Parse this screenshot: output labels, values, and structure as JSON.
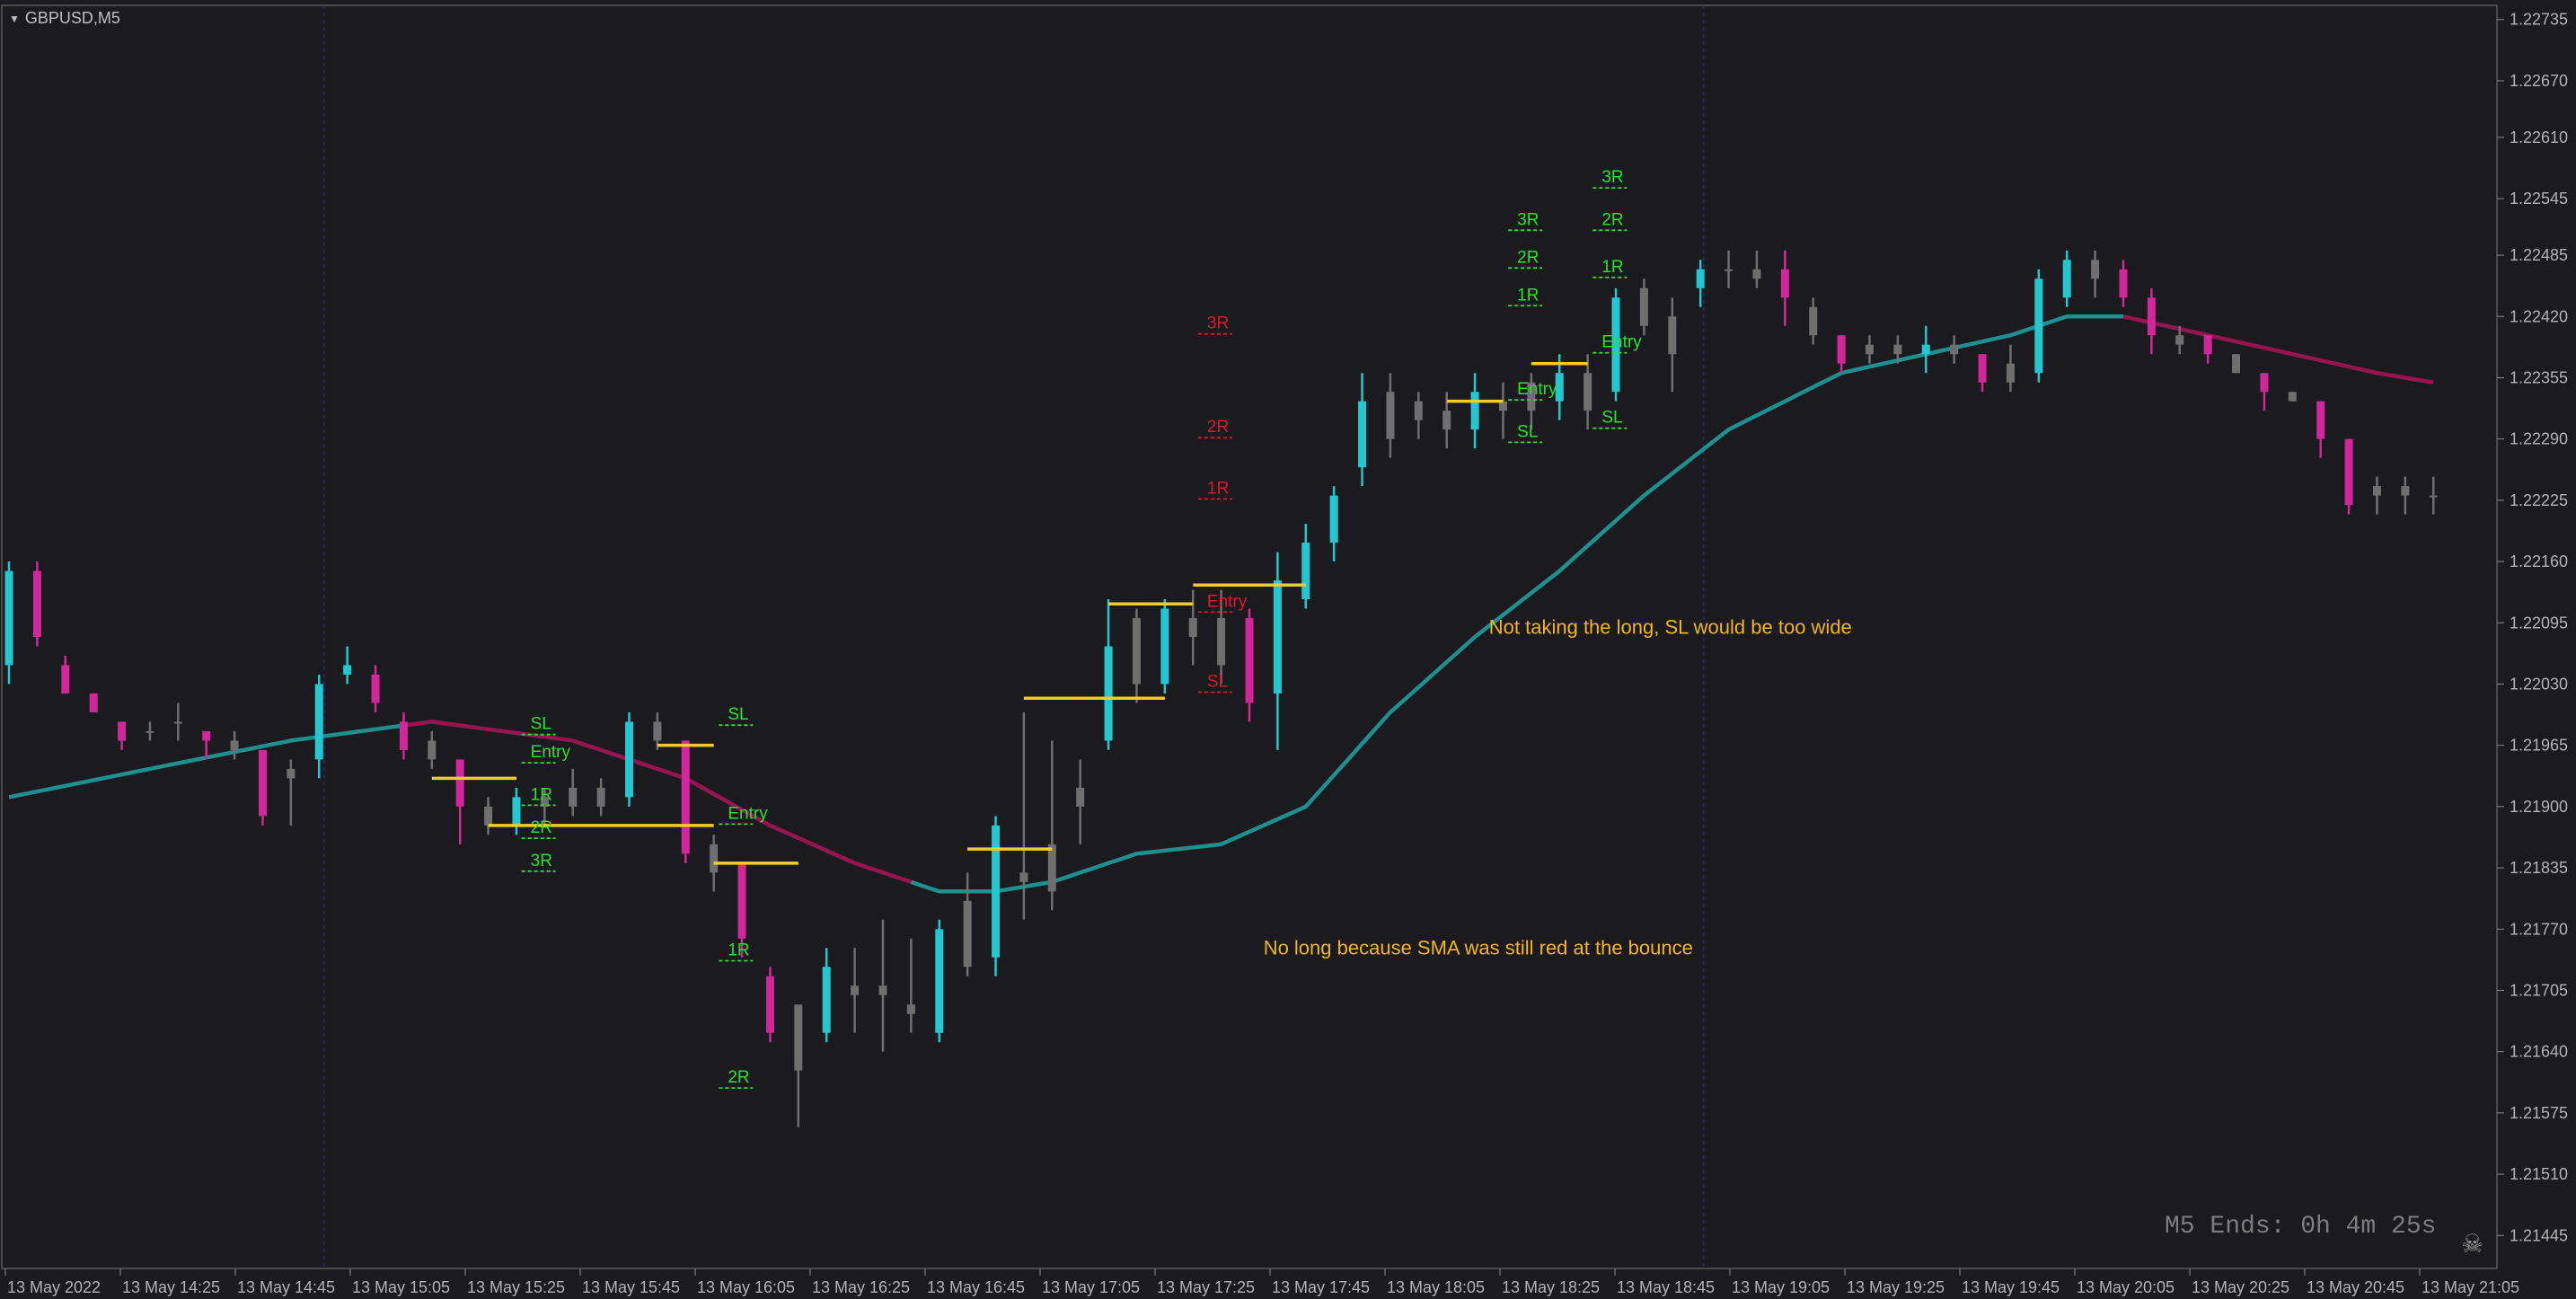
{
  "symbol": "GBPUSD,M5",
  "timer": "M5 Ends: 0h 4m 25s",
  "colors": {
    "background": "#1b1b1f",
    "bull": "#22c7cf",
    "bear": "#d1279a",
    "neutral": "#6f6f6f",
    "sma_up": "#1f8f8f",
    "sma_down": "#97154f",
    "level_yellow": "#f2cd2a",
    "label_green": "#29e12f",
    "label_red": "#e0162a",
    "annotation": "#f0b429",
    "axis_text": "#b3b3b3",
    "separator": "#2a2a7a"
  },
  "chart_data": {
    "type": "candlestick",
    "title": "",
    "xlabel": "",
    "ylabel": "",
    "ylim": [
      1.2141,
      1.2275
    ],
    "grid": false,
    "y_ticks": [
      "1.22735",
      "1.22670",
      "1.22610",
      "1.22545",
      "1.22485",
      "1.22420",
      "1.22355",
      "1.22290",
      "1.22225",
      "1.22160",
      "1.22095",
      "1.22030",
      "1.21965",
      "1.21900",
      "1.21835",
      "1.21770",
      "1.21705",
      "1.21640",
      "1.21575",
      "1.21510",
      "1.21445"
    ],
    "x_ticks": [
      "13 May 2022",
      "13 May 14:25",
      "13 May 14:45",
      "13 May 15:05",
      "13 May 15:25",
      "13 May 15:45",
      "13 May 16:05",
      "13 May 16:25",
      "13 May 16:45",
      "13 May 17:05",
      "13 May 17:25",
      "13 May 17:45",
      "13 May 18:05",
      "13 May 18:25",
      "13 May 18:45",
      "13 May 19:05",
      "13 May 19:25",
      "13 May 19:45",
      "13 May 20:05",
      "13 May 20:25",
      "13 May 20:45",
      "13 May 21:05"
    ],
    "period_separators": [
      "13 May 14:45",
      "13 May 18:45"
    ],
    "candles": [
      {
        "x": 0,
        "o": 1.2205,
        "h": 1.2216,
        "l": 1.2203,
        "c": 1.2215,
        "k": "bull"
      },
      {
        "x": 2,
        "o": 1.2215,
        "h": 1.2216,
        "l": 1.2207,
        "c": 1.2208,
        "k": "bear"
      },
      {
        "x": 4,
        "o": 1.2205,
        "h": 1.2206,
        "l": 1.2202,
        "c": 1.2202,
        "k": "bear"
      },
      {
        "x": 6,
        "o": 1.2202,
        "h": 1.2202,
        "l": 1.22,
        "c": 1.22,
        "k": "bear"
      },
      {
        "x": 8,
        "o": 1.2199,
        "h": 1.2199,
        "l": 1.2196,
        "c": 1.2197,
        "k": "bear"
      },
      {
        "x": 10,
        "o": 1.2198,
        "h": 1.2199,
        "l": 1.2197,
        "c": 1.2198,
        "k": "neutral"
      },
      {
        "x": 12,
        "o": 1.2199,
        "h": 1.2201,
        "l": 1.2197,
        "c": 1.2199,
        "k": "neutral"
      },
      {
        "x": 14,
        "o": 1.2198,
        "h": 1.2198,
        "l": 1.2195,
        "c": 1.2197,
        "k": "bear"
      },
      {
        "x": 16,
        "o": 1.2197,
        "h": 1.2198,
        "l": 1.2195,
        "c": 1.2196,
        "k": "neutral"
      },
      {
        "x": 18,
        "o": 1.2196,
        "h": 1.2196,
        "l": 1.2188,
        "c": 1.2189,
        "k": "bear"
      },
      {
        "x": 20,
        "o": 1.2193,
        "h": 1.2195,
        "l": 1.2188,
        "c": 1.2194,
        "k": "neutral"
      },
      {
        "x": 22,
        "o": 1.2195,
        "h": 1.2204,
        "l": 1.2193,
        "c": 1.2203,
        "k": "bull"
      },
      {
        "x": 24,
        "o": 1.2204,
        "h": 1.2207,
        "l": 1.2203,
        "c": 1.2205,
        "k": "bull"
      },
      {
        "x": 26,
        "o": 1.2204,
        "h": 1.2205,
        "l": 1.22,
        "c": 1.2201,
        "k": "bear"
      },
      {
        "x": 28,
        "o": 1.2199,
        "h": 1.22,
        "l": 1.2195,
        "c": 1.2196,
        "k": "bear"
      },
      {
        "x": 30,
        "o": 1.2197,
        "h": 1.2198,
        "l": 1.2194,
        "c": 1.2195,
        "k": "neutral"
      },
      {
        "x": 32,
        "o": 1.2195,
        "h": 1.2195,
        "l": 1.2186,
        "c": 1.219,
        "k": "bear"
      },
      {
        "x": 34,
        "o": 1.219,
        "h": 1.2191,
        "l": 1.2187,
        "c": 1.2188,
        "k": "neutral"
      },
      {
        "x": 36,
        "o": 1.2188,
        "h": 1.2192,
        "l": 1.2187,
        "c": 1.2191,
        "k": "bull"
      },
      {
        "x": 38,
        "o": 1.2191,
        "h": 1.2192,
        "l": 1.2188,
        "c": 1.219,
        "k": "neutral"
      },
      {
        "x": 40,
        "o": 1.219,
        "h": 1.2194,
        "l": 1.2189,
        "c": 1.2192,
        "k": "neutral"
      },
      {
        "x": 42,
        "o": 1.2192,
        "h": 1.2193,
        "l": 1.2189,
        "c": 1.219,
        "k": "neutral"
      },
      {
        "x": 44,
        "o": 1.2191,
        "h": 1.22,
        "l": 1.219,
        "c": 1.2199,
        "k": "bull"
      },
      {
        "x": 46,
        "o": 1.2199,
        "h": 1.22,
        "l": 1.2196,
        "c": 1.2197,
        "k": "neutral"
      },
      {
        "x": 48,
        "o": 1.2197,
        "h": 1.2197,
        "l": 1.2184,
        "c": 1.2185,
        "k": "bear"
      },
      {
        "x": 50,
        "o": 1.2186,
        "h": 1.2187,
        "l": 1.2181,
        "c": 1.2183,
        "k": "neutral"
      },
      {
        "x": 52,
        "o": 1.2184,
        "h": 1.2184,
        "l": 1.2174,
        "c": 1.2176,
        "k": "bear"
      },
      {
        "x": 54,
        "o": 1.2172,
        "h": 1.2173,
        "l": 1.2165,
        "c": 1.2166,
        "k": "bear"
      },
      {
        "x": 56,
        "o": 1.2169,
        "h": 1.2169,
        "l": 1.2156,
        "c": 1.2162,
        "k": "neutral"
      },
      {
        "x": 58,
        "o": 1.2166,
        "h": 1.2175,
        "l": 1.2165,
        "c": 1.2173,
        "k": "bull"
      },
      {
        "x": 60,
        "o": 1.217,
        "h": 1.2175,
        "l": 1.2166,
        "c": 1.2171,
        "k": "neutral"
      },
      {
        "x": 62,
        "o": 1.217,
        "h": 1.2178,
        "l": 1.2164,
        "c": 1.2171,
        "k": "neutral"
      },
      {
        "x": 64,
        "o": 1.2168,
        "h": 1.2176,
        "l": 1.2166,
        "c": 1.2169,
        "k": "neutral"
      },
      {
        "x": 66,
        "o": 1.2166,
        "h": 1.2178,
        "l": 1.2165,
        "c": 1.2177,
        "k": "bull"
      },
      {
        "x": 68,
        "o": 1.2173,
        "h": 1.2183,
        "l": 1.2172,
        "c": 1.218,
        "k": "neutral"
      },
      {
        "x": 70,
        "o": 1.2174,
        "h": 1.2189,
        "l": 1.2172,
        "c": 1.2188,
        "k": "bull"
      },
      {
        "x": 72,
        "o": 1.2182,
        "h": 1.22,
        "l": 1.2178,
        "c": 1.2183,
        "k": "neutral"
      },
      {
        "x": 74,
        "o": 1.2181,
        "h": 1.2197,
        "l": 1.2179,
        "c": 1.2186,
        "k": "neutral"
      },
      {
        "x": 76,
        "o": 1.219,
        "h": 1.2195,
        "l": 1.2186,
        "c": 1.2192,
        "k": "neutral"
      },
      {
        "x": 78,
        "o": 1.2197,
        "h": 1.2212,
        "l": 1.2196,
        "c": 1.2207,
        "k": "bull"
      },
      {
        "x": 80,
        "o": 1.2203,
        "h": 1.2211,
        "l": 1.2201,
        "c": 1.221,
        "k": "neutral"
      },
      {
        "x": 82,
        "o": 1.2203,
        "h": 1.2212,
        "l": 1.2202,
        "c": 1.2211,
        "k": "bull"
      },
      {
        "x": 84,
        "o": 1.2208,
        "h": 1.2213,
        "l": 1.2205,
        "c": 1.221,
        "k": "neutral"
      },
      {
        "x": 86,
        "o": 1.221,
        "h": 1.2213,
        "l": 1.2203,
        "c": 1.2205,
        "k": "neutral"
      },
      {
        "x": 88,
        "o": 1.221,
        "h": 1.2211,
        "l": 1.2199,
        "c": 1.2201,
        "k": "bear"
      },
      {
        "x": 90,
        "o": 1.2202,
        "h": 1.2217,
        "l": 1.2196,
        "c": 1.2214,
        "k": "bull"
      },
      {
        "x": 92,
        "o": 1.2212,
        "h": 1.222,
        "l": 1.2211,
        "c": 1.2218,
        "k": "bull"
      },
      {
        "x": 94,
        "o": 1.2218,
        "h": 1.2224,
        "l": 1.2216,
        "c": 1.2223,
        "k": "bull"
      },
      {
        "x": 96,
        "o": 1.2226,
        "h": 1.2236,
        "l": 1.2224,
        "c": 1.2233,
        "k": "bull"
      },
      {
        "x": 98,
        "o": 1.2229,
        "h": 1.2236,
        "l": 1.2227,
        "c": 1.2234,
        "k": "neutral"
      },
      {
        "x": 100,
        "o": 1.2231,
        "h": 1.2234,
        "l": 1.2229,
        "c": 1.2233,
        "k": "neutral"
      },
      {
        "x": 102,
        "o": 1.223,
        "h": 1.2234,
        "l": 1.2228,
        "c": 1.2232,
        "k": "neutral"
      },
      {
        "x": 104,
        "o": 1.223,
        "h": 1.2236,
        "l": 1.2228,
        "c": 1.2234,
        "k": "bull"
      },
      {
        "x": 106,
        "o": 1.2232,
        "h": 1.2235,
        "l": 1.2229,
        "c": 1.2233,
        "k": "neutral"
      },
      {
        "x": 108,
        "o": 1.2232,
        "h": 1.2236,
        "l": 1.223,
        "c": 1.2235,
        "k": "neutral"
      },
      {
        "x": 110,
        "o": 1.2233,
        "h": 1.2238,
        "l": 1.2231,
        "c": 1.2236,
        "k": "bull"
      },
      {
        "x": 112,
        "o": 1.2232,
        "h": 1.2238,
        "l": 1.223,
        "c": 1.2236,
        "k": "neutral"
      },
      {
        "x": 114,
        "o": 1.2234,
        "h": 1.2245,
        "l": 1.2233,
        "c": 1.2244,
        "k": "bull"
      },
      {
        "x": 116,
        "o": 1.2241,
        "h": 1.2246,
        "l": 1.224,
        "c": 1.2245,
        "k": "neutral"
      },
      {
        "x": 118,
        "o": 1.2238,
        "h": 1.2244,
        "l": 1.2234,
        "c": 1.2242,
        "k": "neutral"
      },
      {
        "x": 120,
        "o": 1.2245,
        "h": 1.2248,
        "l": 1.2243,
        "c": 1.2247,
        "k": "bull"
      },
      {
        "x": 122,
        "o": 1.2247,
        "h": 1.2249,
        "l": 1.2245,
        "c": 1.2247,
        "k": "neutral"
      },
      {
        "x": 124,
        "o": 1.2246,
        "h": 1.2249,
        "l": 1.2245,
        "c": 1.2247,
        "k": "neutral"
      },
      {
        "x": 126,
        "o": 1.2247,
        "h": 1.2249,
        "l": 1.2241,
        "c": 1.2244,
        "k": "bear"
      },
      {
        "x": 128,
        "o": 1.2243,
        "h": 1.2244,
        "l": 1.2239,
        "c": 1.224,
        "k": "neutral"
      },
      {
        "x": 130,
        "o": 1.224,
        "h": 1.224,
        "l": 1.2236,
        "c": 1.2237,
        "k": "bear"
      },
      {
        "x": 132,
        "o": 1.2239,
        "h": 1.224,
        "l": 1.2237,
        "c": 1.2238,
        "k": "neutral"
      },
      {
        "x": 134,
        "o": 1.2238,
        "h": 1.224,
        "l": 1.2237,
        "c": 1.2239,
        "k": "neutral"
      },
      {
        "x": 136,
        "o": 1.2238,
        "h": 1.2241,
        "l": 1.2236,
        "c": 1.2239,
        "k": "bull"
      },
      {
        "x": 138,
        "o": 1.2238,
        "h": 1.224,
        "l": 1.2237,
        "c": 1.2239,
        "k": "neutral"
      },
      {
        "x": 140,
        "o": 1.2238,
        "h": 1.2238,
        "l": 1.2234,
        "c": 1.2235,
        "k": "bear"
      },
      {
        "x": 142,
        "o": 1.2235,
        "h": 1.2239,
        "l": 1.2234,
        "c": 1.2237,
        "k": "neutral"
      },
      {
        "x": 144,
        "o": 1.2236,
        "h": 1.2247,
        "l": 1.2235,
        "c": 1.2246,
        "k": "bull"
      },
      {
        "x": 146,
        "o": 1.2244,
        "h": 1.2249,
        "l": 1.2243,
        "c": 1.2248,
        "k": "bull"
      },
      {
        "x": 148,
        "o": 1.2246,
        "h": 1.2249,
        "l": 1.2244,
        "c": 1.2248,
        "k": "neutral"
      },
      {
        "x": 150,
        "o": 1.2247,
        "h": 1.2248,
        "l": 1.2243,
        "c": 1.2244,
        "k": "bear"
      },
      {
        "x": 152,
        "o": 1.2244,
        "h": 1.2245,
        "l": 1.2238,
        "c": 1.224,
        "k": "bear"
      },
      {
        "x": 154,
        "o": 1.224,
        "h": 1.2241,
        "l": 1.2238,
        "c": 1.2239,
        "k": "neutral"
      },
      {
        "x": 156,
        "o": 1.224,
        "h": 1.224,
        "l": 1.2237,
        "c": 1.2238,
        "k": "bear"
      },
      {
        "x": 158,
        "o": 1.2238,
        "h": 1.2238,
        "l": 1.2236,
        "c": 1.2236,
        "k": "neutral"
      },
      {
        "x": 160,
        "o": 1.2236,
        "h": 1.2236,
        "l": 1.2232,
        "c": 1.2234,
        "k": "bear"
      },
      {
        "x": 162,
        "o": 1.2234,
        "h": 1.2234,
        "l": 1.2233,
        "c": 1.2233,
        "k": "neutral"
      },
      {
        "x": 164,
        "o": 1.2233,
        "h": 1.2233,
        "l": 1.2227,
        "c": 1.2229,
        "k": "bear"
      },
      {
        "x": 166,
        "o": 1.2229,
        "h": 1.2229,
        "l": 1.2221,
        "c": 1.2222,
        "k": "bear"
      },
      {
        "x": 168,
        "o": 1.2223,
        "h": 1.2225,
        "l": 1.2221,
        "c": 1.2224,
        "k": "neutral"
      },
      {
        "x": 170,
        "o": 1.2224,
        "h": 1.2225,
        "l": 1.2221,
        "c": 1.2223,
        "k": "neutral"
      },
      {
        "x": 172,
        "o": 1.2223,
        "h": 1.2225,
        "l": 1.2221,
        "c": 1.2223,
        "k": "neutral"
      }
    ],
    "sma": {
      "name": "",
      "x": [
        0,
        10,
        20,
        30,
        40,
        48,
        54,
        60,
        66,
        70,
        74,
        80,
        86,
        92,
        98,
        104,
        110,
        116,
        122,
        130,
        136,
        142,
        146,
        150,
        156,
        162,
        168,
        172
      ],
      "y": [
        1.2191,
        1.2194,
        1.2197,
        1.2199,
        1.2197,
        1.2193,
        1.2188,
        1.2184,
        1.2181,
        1.2181,
        1.2182,
        1.2185,
        1.2186,
        1.219,
        1.22,
        1.2208,
        1.2215,
        1.2223,
        1.223,
        1.2236,
        1.2238,
        1.224,
        1.2242,
        1.2242,
        1.224,
        1.2238,
        1.2236,
        1.2235
      ],
      "segments": [
        {
          "from": 0,
          "to": 28,
          "color": "up"
        },
        {
          "from": 28,
          "to": 64,
          "color": "down"
        },
        {
          "from": 64,
          "to": 150,
          "color": "up"
        },
        {
          "from": 150,
          "to": 172,
          "color": "down"
        }
      ]
    },
    "levels": [
      {
        "x1": 30,
        "x2": 36,
        "y": 1.2193
      },
      {
        "x1": 34,
        "x2": 50,
        "y": 1.2188
      },
      {
        "x1": 46,
        "x2": 50,
        "y": 1.21965
      },
      {
        "x1": 50,
        "x2": 56,
        "y": 1.2184
      },
      {
        "x1": 68,
        "x2": 74,
        "y": 1.21855
      },
      {
        "x1": 72,
        "x2": 82,
        "y": 1.22015
      },
      {
        "x1": 78,
        "x2": 84,
        "y": 1.22115
      },
      {
        "x1": 84,
        "x2": 92,
        "y": 1.22135
      },
      {
        "x1": 102,
        "x2": 106,
        "y": 1.2233
      },
      {
        "x1": 108,
        "x2": 112,
        "y": 1.2237
      }
    ],
    "trade_labels": [
      {
        "x": 37,
        "y": 1.21985,
        "text": "SL",
        "color": "green"
      },
      {
        "x": 37,
        "y": 1.21955,
        "text": "Entry",
        "color": "green"
      },
      {
        "x": 37,
        "y": 1.2191,
        "text": "1R",
        "color": "green"
      },
      {
        "x": 37,
        "y": 1.21875,
        "text": "2R",
        "color": "green"
      },
      {
        "x": 37,
        "y": 1.2184,
        "text": "3R",
        "color": "green"
      },
      {
        "x": 51,
        "y": 1.21995,
        "text": "SL",
        "color": "green"
      },
      {
        "x": 51,
        "y": 1.2189,
        "text": "Entry",
        "color": "green"
      },
      {
        "x": 51,
        "y": 1.21745,
        "text": "1R",
        "color": "green"
      },
      {
        "x": 51,
        "y": 1.2161,
        "text": "2R",
        "color": "green"
      },
      {
        "x": 85,
        "y": 1.2241,
        "text": "3R",
        "color": "red"
      },
      {
        "x": 85,
        "y": 1.223,
        "text": "2R",
        "color": "red"
      },
      {
        "x": 85,
        "y": 1.22235,
        "text": "1R",
        "color": "red"
      },
      {
        "x": 85,
        "y": 1.22115,
        "text": "Entry",
        "color": "red"
      },
      {
        "x": 85,
        "y": 1.2203,
        "text": "SL",
        "color": "red"
      },
      {
        "x": 107,
        "y": 1.2252,
        "text": "3R",
        "color": "green"
      },
      {
        "x": 107,
        "y": 1.2248,
        "text": "2R",
        "color": "green"
      },
      {
        "x": 107,
        "y": 1.2244,
        "text": "1R",
        "color": "green"
      },
      {
        "x": 107,
        "y": 1.2234,
        "text": "Entry",
        "color": "green"
      },
      {
        "x": 107,
        "y": 1.22295,
        "text": "SL",
        "color": "green"
      },
      {
        "x": 113,
        "y": 1.22565,
        "text": "3R",
        "color": "green"
      },
      {
        "x": 113,
        "y": 1.2252,
        "text": "2R",
        "color": "green"
      },
      {
        "x": 113,
        "y": 1.2247,
        "text": "1R",
        "color": "green"
      },
      {
        "x": 113,
        "y": 1.2239,
        "text": "Entry",
        "color": "green"
      },
      {
        "x": 113,
        "y": 1.2231,
        "text": "SL",
        "color": "green"
      }
    ],
    "annotations": [
      {
        "x": 105,
        "y": 1.2209,
        "text": "Not taking the long, SL would be too wide"
      },
      {
        "x": 89,
        "y": 1.2175,
        "text": "No long because SMA was still red at the bounce"
      }
    ]
  }
}
